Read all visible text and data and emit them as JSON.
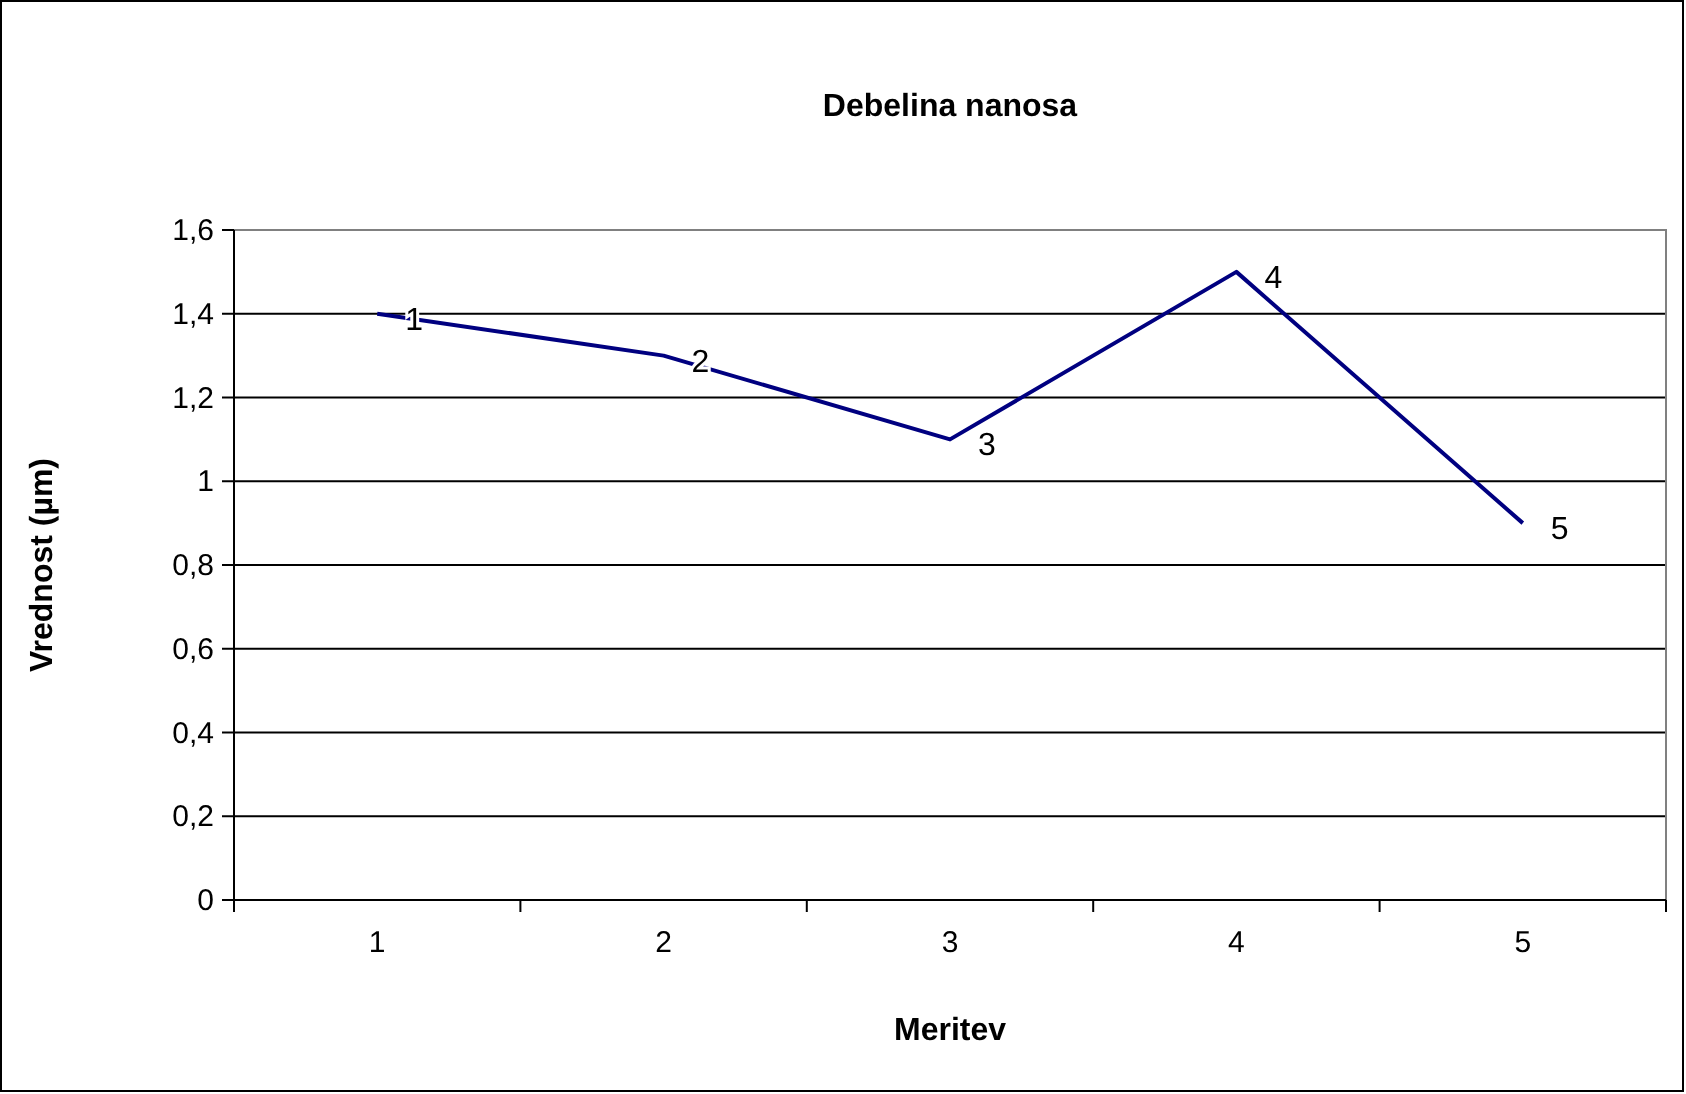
{
  "chart_data": {
    "type": "line",
    "title": "Debelina nanosa",
    "xlabel": "Meritev",
    "ylabel": "Vrednost (µm)",
    "categories": [
      "1",
      "2",
      "3",
      "4",
      "5"
    ],
    "series": [
      {
        "color": "#000080",
        "values": [
          1.4,
          1.3,
          1.1,
          1.5,
          0.9
        ]
      }
    ],
    "annotations": [
      {
        "text": "1",
        "x": "1",
        "y": 1.4
      },
      {
        "text": "2",
        "x": "2",
        "y": 1.3
      },
      {
        "text": "3",
        "x": "3",
        "y": 1.1
      },
      {
        "text": "4",
        "x": "4",
        "y": 1.5
      },
      {
        "text": "5",
        "x": "5",
        "y": 0.9
      }
    ],
    "ylim": [
      0,
      1.6
    ],
    "yticks": [
      0,
      {
        "value": 0.2,
        "label": "0,2"
      },
      {
        "value": 0.4,
        "label": "0,4"
      },
      {
        "value": 0.6,
        "label": "0,6"
      },
      {
        "value": 0.8,
        "label": "0,8"
      },
      1,
      {
        "value": 1.2,
        "label": "1,2"
      },
      {
        "value": 1.4,
        "label": "1,4"
      },
      {
        "value": 1.6,
        "label": "1,6"
      }
    ],
    "grid": "y",
    "marker": "none",
    "line_style": "solid"
  }
}
